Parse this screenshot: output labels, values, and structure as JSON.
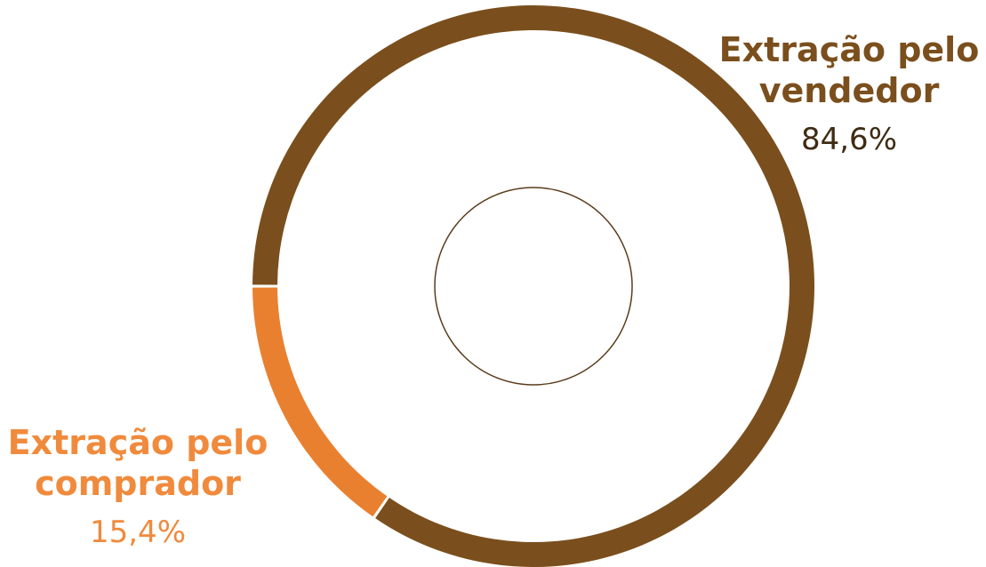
{
  "chart_data": {
    "type": "pie",
    "variant": "donut",
    "slices": [
      {
        "label": "Extração pelo vendedor",
        "value_label": "84,6%",
        "value": 84.6,
        "color": "#7a4f1d",
        "label_color": "#7a4f1d",
        "value_color": "#3f2b14"
      },
      {
        "label": "Extração pelo comprador",
        "value_label": "15,4%",
        "value": 15.4,
        "color": "#e98030",
        "label_color": "#f08a3c",
        "value_color": "#f08a3c"
      }
    ],
    "start_direction": "left",
    "order": "clockwise-from-left",
    "center_circle_color": "#5a3c1c",
    "background": "#ffffff"
  }
}
